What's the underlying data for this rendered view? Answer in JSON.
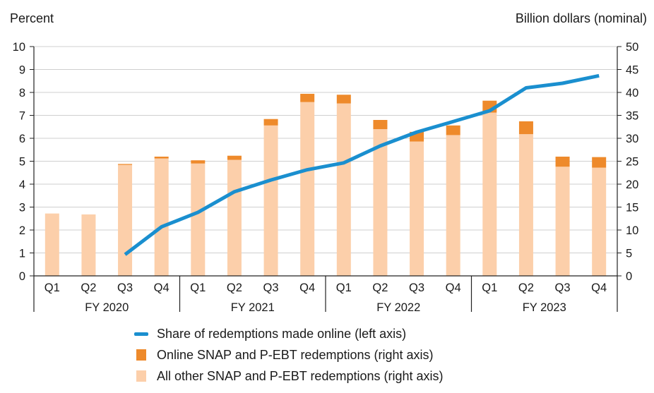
{
  "chart_data": {
    "type": "bar+line",
    "left_axis_title": "Percent",
    "right_axis_title": "Billion dollars (nominal)",
    "left_ylim": [
      0,
      10
    ],
    "left_ticks": [
      "0",
      "1",
      "2",
      "3",
      "4",
      "5",
      "6",
      "7",
      "8",
      "9",
      "10"
    ],
    "right_ylim": [
      0,
      50
    ],
    "right_ticks": [
      "0",
      "5",
      "10",
      "15",
      "20",
      "25",
      "30",
      "35",
      "40",
      "45",
      "50"
    ],
    "categories": [
      "Q1",
      "Q2",
      "Q3",
      "Q4",
      "Q1",
      "Q2",
      "Q3",
      "Q4",
      "Q1",
      "Q2",
      "Q3",
      "Q4",
      "Q1",
      "Q2",
      "Q3",
      "Q4"
    ],
    "groups": [
      {
        "label": "FY 2020",
        "count": 4
      },
      {
        "label": "FY 2021",
        "count": 4
      },
      {
        "label": "FY 2022",
        "count": 4
      },
      {
        "label": "FY 2023",
        "count": 4
      }
    ],
    "series": [
      {
        "name": "All other SNAP and P-EBT redemptions (right axis)",
        "type": "bar",
        "axis": "right",
        "color": "#fccfaa",
        "values": [
          13.6,
          13.4,
          24.2,
          25.6,
          24.5,
          25.3,
          32.8,
          37.9,
          37.6,
          32.0,
          29.3,
          30.7,
          35.6,
          30.9,
          23.8,
          23.6
        ]
      },
      {
        "name": "Online SNAP and P-EBT redemptions (right axis)",
        "type": "bar",
        "axis": "right",
        "color": "#ee8a2b",
        "values": [
          0.0,
          0.0,
          0.2,
          0.4,
          0.7,
          0.9,
          1.4,
          1.8,
          1.9,
          2.0,
          2.1,
          2.1,
          2.6,
          2.8,
          2.2,
          2.3
        ]
      },
      {
        "name": "Share of redemptions made online (left axis)",
        "type": "line",
        "axis": "left",
        "color": "#1a8fcf",
        "values": [
          null,
          null,
          0.93,
          2.14,
          2.77,
          3.67,
          4.18,
          4.63,
          4.93,
          5.67,
          6.27,
          6.73,
          7.2,
          8.2,
          8.4,
          8.73
        ]
      }
    ]
  }
}
